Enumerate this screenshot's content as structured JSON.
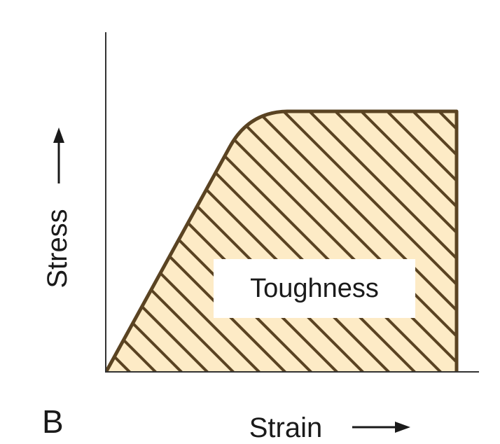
{
  "figure": {
    "panel_label": "B",
    "xlabel": "Strain",
    "ylabel": "Stress",
    "region_label": "Toughness",
    "x_arrow": "→",
    "y_arrow": "→"
  },
  "colors": {
    "region_fill": "#fdebc6",
    "curve_stroke": "#5a4322",
    "hatch_stroke": "#5a4322",
    "axis_stroke": "#333333",
    "text": "#1a1a1a",
    "label_box": "#ffffff"
  }
}
